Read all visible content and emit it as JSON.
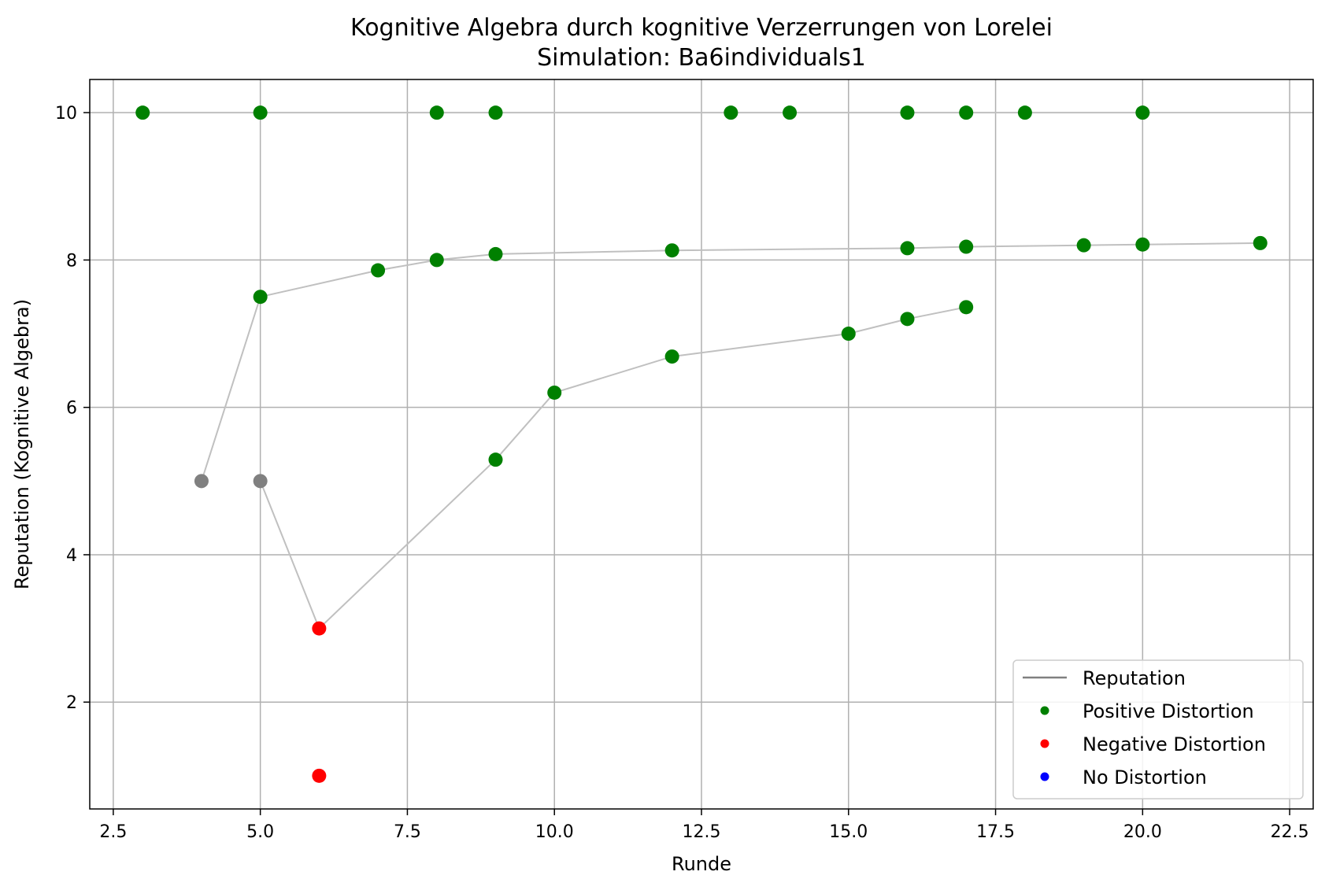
{
  "chart_data": {
    "type": "scatter",
    "title": "Kognitive Algebra durch kognitive Verzerrungen von Lorelei",
    "subtitle": "Simulation: Ba6individuals1",
    "xlabel": "Runde",
    "ylabel": "Reputation (Kognitive Algebra)",
    "xlim": [
      2.1,
      22.9
    ],
    "ylim": [
      0.55,
      10.45
    ],
    "xticks": [
      2.5,
      5.0,
      7.5,
      10.0,
      12.5,
      15.0,
      17.5,
      20.0,
      22.5
    ],
    "xtick_labels": [
      "2.5",
      "5.0",
      "7.5",
      "10.0",
      "12.5",
      "15.0",
      "17.5",
      "20.0",
      "22.5"
    ],
    "yticks": [
      2,
      4,
      6,
      8,
      10
    ],
    "ytick_labels": [
      "2",
      "4",
      "6",
      "8",
      "10"
    ],
    "grid": true,
    "legend_position": "lower-right",
    "legend": [
      {
        "label": "Reputation",
        "kind": "line",
        "color": "#808080"
      },
      {
        "label": "Positive Distortion",
        "kind": "marker",
        "color": "#008000"
      },
      {
        "label": "Negative Distortion",
        "kind": "marker",
        "color": "#ff0000"
      },
      {
        "label": "No Distortion",
        "kind": "marker",
        "color": "#0000ff"
      }
    ],
    "lines": [
      {
        "name": "Reputation A",
        "x": [
          3,
          5,
          8,
          9,
          13,
          14,
          16,
          17,
          18,
          20
        ],
        "y": [
          10,
          10,
          10,
          10,
          10,
          10,
          10,
          10,
          10,
          10
        ]
      },
      {
        "name": "Reputation B",
        "x": [
          4,
          5,
          7,
          8,
          9,
          12,
          16,
          17,
          19,
          20,
          22
        ],
        "y": [
          5.0,
          7.5,
          7.86,
          8.0,
          8.08,
          8.13,
          8.16,
          8.18,
          8.2,
          8.21,
          8.23
        ]
      },
      {
        "name": "Reputation C",
        "x": [
          5,
          6,
          9,
          10,
          12,
          15,
          16,
          17
        ],
        "y": [
          5.0,
          3.0,
          5.29,
          6.2,
          6.69,
          7.0,
          7.2,
          7.36
        ]
      }
    ],
    "points": [
      {
        "x": 3,
        "y": 10,
        "category": "positive"
      },
      {
        "x": 5,
        "y": 10,
        "category": "positive"
      },
      {
        "x": 8,
        "y": 10,
        "category": "positive"
      },
      {
        "x": 9,
        "y": 10,
        "category": "positive"
      },
      {
        "x": 13,
        "y": 10,
        "category": "positive"
      },
      {
        "x": 14,
        "y": 10,
        "category": "positive"
      },
      {
        "x": 16,
        "y": 10,
        "category": "positive"
      },
      {
        "x": 17,
        "y": 10,
        "category": "positive"
      },
      {
        "x": 18,
        "y": 10,
        "category": "positive"
      },
      {
        "x": 20,
        "y": 10,
        "category": "positive"
      },
      {
        "x": 5,
        "y": 7.5,
        "category": "positive"
      },
      {
        "x": 7,
        "y": 7.86,
        "category": "positive"
      },
      {
        "x": 8,
        "y": 8.0,
        "category": "positive"
      },
      {
        "x": 9,
        "y": 8.08,
        "category": "positive"
      },
      {
        "x": 12,
        "y": 8.13,
        "category": "positive"
      },
      {
        "x": 16,
        "y": 8.16,
        "category": "positive"
      },
      {
        "x": 17,
        "y": 8.18,
        "category": "positive"
      },
      {
        "x": 19,
        "y": 8.2,
        "category": "positive"
      },
      {
        "x": 20,
        "y": 8.21,
        "category": "positive"
      },
      {
        "x": 22,
        "y": 8.23,
        "category": "positive"
      },
      {
        "x": 9,
        "y": 5.29,
        "category": "positive"
      },
      {
        "x": 10,
        "y": 6.2,
        "category": "positive"
      },
      {
        "x": 12,
        "y": 6.69,
        "category": "positive"
      },
      {
        "x": 15,
        "y": 7.0,
        "category": "positive"
      },
      {
        "x": 16,
        "y": 7.2,
        "category": "positive"
      },
      {
        "x": 17,
        "y": 7.36,
        "category": "positive"
      },
      {
        "x": 4,
        "y": 5.0,
        "category": "initial"
      },
      {
        "x": 5,
        "y": 5.0,
        "category": "initial"
      },
      {
        "x": 6,
        "y": 3.0,
        "category": "negative"
      },
      {
        "x": 6,
        "y": 1.0,
        "category": "negative"
      }
    ],
    "colors": {
      "positive": "#008000",
      "negative": "#ff0000",
      "none": "#0000ff",
      "initial": "#808080",
      "line": "#c0c0c0",
      "grid": "#b0b0b0"
    }
  }
}
